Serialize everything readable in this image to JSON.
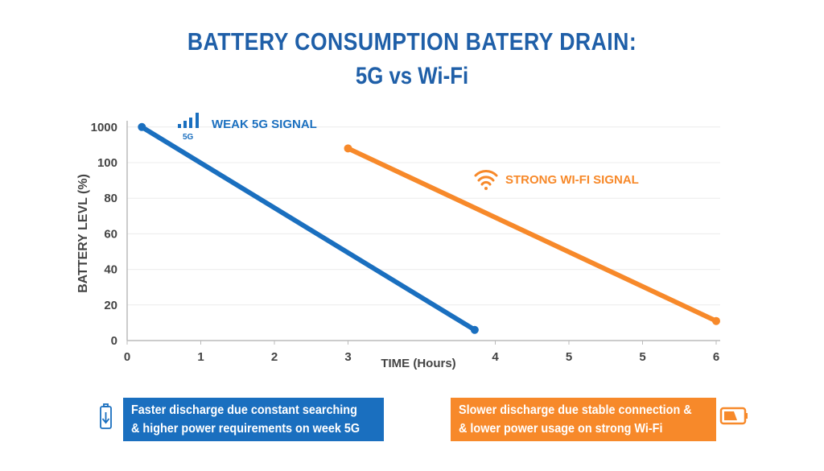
{
  "title_line1": "BATTERY CONSUMPTION BATERY DRAIN:",
  "title_line2": "5G vs Wi-Fi",
  "colors": {
    "title": "#1f5fa8",
    "five_g": "#1a6fbf",
    "wifi": "#f7892a"
  },
  "chart_data": {
    "type": "line",
    "xlabel": "TIME (Hours)",
    "ylabel": "BATTERY LEVL  (%)",
    "x_tick_labels": [
      "0",
      "1",
      "2",
      "3",
      "4",
      "5",
      "5",
      "6"
    ],
    "y_tick_labels": [
      "0",
      "20",
      "40",
      "60",
      "80",
      "100",
      "1000"
    ],
    "grid": "horizontal",
    "series": [
      {
        "name": "WEAK 5G SIGNAL",
        "icon": "signal-bars-5g-icon",
        "icon_text": "5G",
        "color": "#1a6fbf",
        "points": [
          {
            "x": 0.2,
            "y": 120
          },
          {
            "x": 3.86,
            "y": 6
          }
        ]
      },
      {
        "name": "STRONG WI-FI SIGNAL",
        "icon": "wifi-icon",
        "color": "#f7892a",
        "points": [
          {
            "x": 3,
            "y": 108
          },
          {
            "x": 6,
            "y": 11
          }
        ]
      }
    ]
  },
  "notes": {
    "five_g": {
      "line1": "Faster discharge due constant searching",
      "line2": "& higher power requirements on week 5G",
      "icon": "battery-draining-icon"
    },
    "wifi": {
      "line1": "Slower discharge due stable connection &",
      "line2": "& lower power usage on strong Wi-Fi",
      "icon": "battery-low-icon"
    }
  }
}
